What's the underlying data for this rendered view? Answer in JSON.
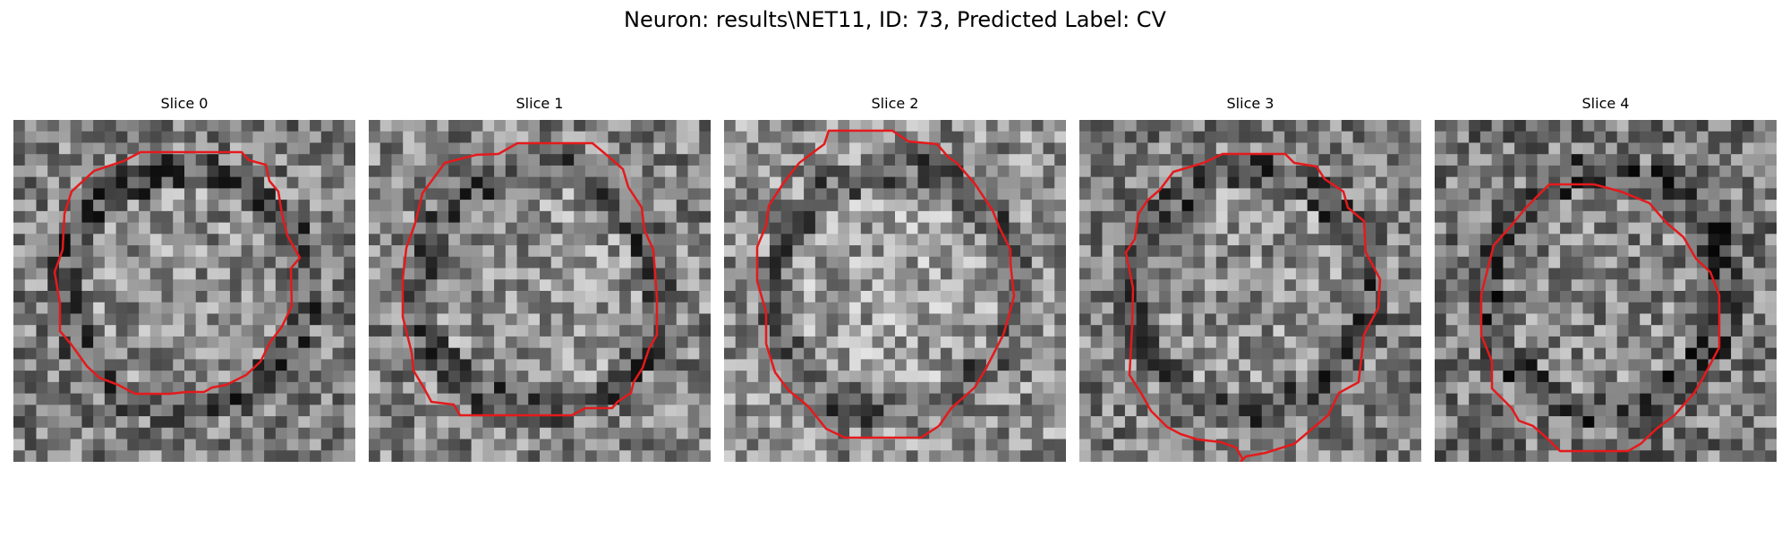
{
  "figure": {
    "title": "Neuron: results\\NET11, ID: 73, Predicted Label: CV",
    "contour_color": "#e41a1c"
  },
  "panels": [
    {
      "title": "Slice 0",
      "seed": 17,
      "brightness": 0.5
    },
    {
      "title": "Slice 1",
      "seed": 29,
      "brightness": 0.52
    },
    {
      "title": "Slice 2",
      "seed": 41,
      "brightness": 0.56
    },
    {
      "title": "Slice 3",
      "seed": 53,
      "brightness": 0.5
    },
    {
      "title": "Slice 4",
      "seed": 67,
      "brightness": 0.47
    }
  ]
}
